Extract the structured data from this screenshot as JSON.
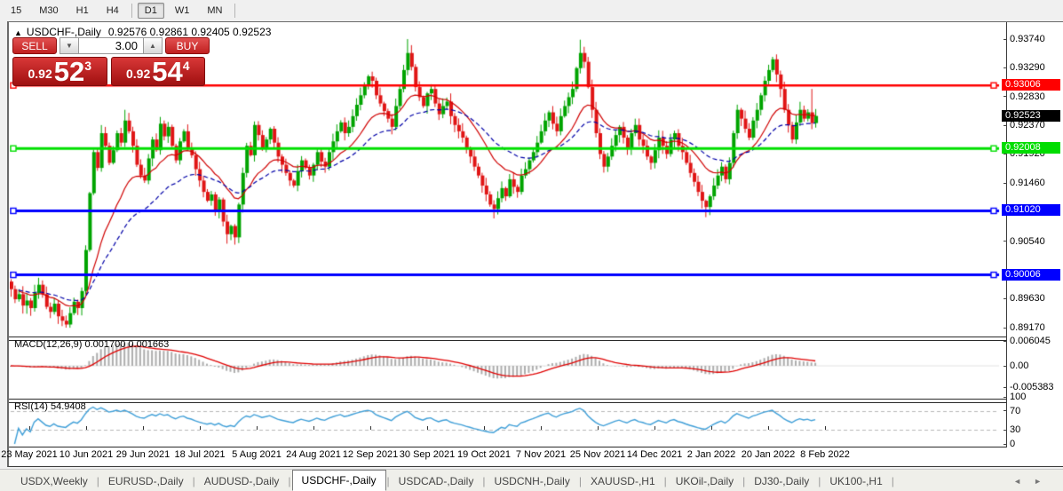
{
  "toolbar": {
    "timeframes": [
      "15",
      "M30",
      "H1",
      "H4",
      "D1",
      "W1",
      "MN"
    ],
    "active": "D1",
    "separators_after": [
      "H4",
      "MN"
    ]
  },
  "chart": {
    "expand_arrow": "▲",
    "symbol_label": "USDCHF-,Daily",
    "ohlc_text": "0.92576 0.92861 0.92405 0.92523",
    "open": "0.92576",
    "high": "0.92861",
    "low": "0.92405",
    "close": "0.92523"
  },
  "trade_panel": {
    "sell_label": "SELL",
    "buy_label": "BUY",
    "volume": "3.00",
    "sell_price": {
      "prefix": "0.92",
      "big": "52",
      "sup": "3"
    },
    "buy_price": {
      "prefix": "0.92",
      "big": "54",
      "sup": "4"
    }
  },
  "icons": {
    "spinner_down": "▼",
    "spinner_up": "▲",
    "tab_scroll_left": "◄",
    "tab_scroll_right": "►"
  },
  "price_axis": {
    "ticks": [
      "0.93740",
      "0.93290",
      "0.92830",
      "0.92370",
      "0.91920",
      "0.91460",
      "0.90540",
      "0.89630",
      "0.89170"
    ],
    "badges": [
      {
        "value": "0.93006",
        "bg": "#ff0000",
        "fg": "#ffffff"
      },
      {
        "value": "0.92523",
        "bg": "#000000",
        "fg": "#ffffff"
      },
      {
        "value": "0.92008",
        "bg": "#00dd00",
        "fg": "#ffffff"
      },
      {
        "value": "0.91020",
        "bg": "#0000ff",
        "fg": "#ffffff"
      },
      {
        "value": "0.90006",
        "bg": "#0000ff",
        "fg": "#ffffff"
      }
    ]
  },
  "levels": [
    {
      "price": 0.93006,
      "color": "#ff0000",
      "width": 2.5
    },
    {
      "price": 0.92008,
      "color": "#00e000",
      "width": 3
    },
    {
      "price": 0.9102,
      "color": "#0000ff",
      "width": 3
    },
    {
      "price": 0.90006,
      "color": "#0000ff",
      "width": 3
    }
  ],
  "date_axis": [
    "23 May 2021",
    "10 Jun 2021",
    "29 Jun 2021",
    "18 Jul 2021",
    "5 Aug 2021",
    "24 Aug 2021",
    "12 Sep 2021",
    "30 Sep 2021",
    "19 Oct 2021",
    "7 Nov 2021",
    "25 Nov 2021",
    "14 Dec 2021",
    "2 Jan 2022",
    "20 Jan 2022",
    "8 Feb 2022"
  ],
  "indicators": {
    "macd": {
      "label": "MACD(12,26,9) 0.001700 0.001663",
      "axis": [
        "0.006045",
        "0.00",
        "-0.005383"
      ],
      "params": [
        12,
        26,
        9
      ]
    },
    "rsi": {
      "label": "RSI(14) 54.9408",
      "axis": [
        "100",
        "70",
        "30",
        "0"
      ],
      "levels": [
        70,
        30
      ],
      "period": 14
    }
  },
  "tabs": {
    "items": [
      "USDX,Weekly",
      "EURUSD-,Daily",
      "AUDUSD-,Daily",
      "USDCHF-,Daily",
      "USDCAD-,Daily",
      "USDCNH-,Daily",
      "XAUUSD-,H1",
      "UKOil-,Daily",
      "DJ30-,Daily",
      "UK100-,H1"
    ],
    "active": "USDCHF-,Daily"
  },
  "chart_data": {
    "type": "candlestick",
    "symbol": "USDCHF",
    "timeframe": "Daily",
    "bull_color": "#00a400",
    "bear_color": "#e01515",
    "ma_fast_color": "#d00000",
    "ma_slow_color": "#0000a8",
    "rsi_color": "#3f9fd8",
    "macd_bar_color": "#adadad",
    "macd_signal_color": "#e00000",
    "closes": [
      0.8978,
      0.8962,
      0.897,
      0.8952,
      0.896,
      0.8948,
      0.8972,
      0.8985,
      0.897,
      0.895,
      0.8942,
      0.8955,
      0.8935,
      0.8928,
      0.8922,
      0.894,
      0.8958,
      0.8948,
      0.8975,
      0.904,
      0.913,
      0.9195,
      0.917,
      0.9225,
      0.9205,
      0.9178,
      0.9198,
      0.9225,
      0.921,
      0.9245,
      0.9228,
      0.9205,
      0.9175,
      0.9158,
      0.915,
      0.9185,
      0.9215,
      0.9198,
      0.924,
      0.922,
      0.9235,
      0.9205,
      0.9182,
      0.9212,
      0.9228,
      0.9202,
      0.919,
      0.9168,
      0.915,
      0.9132,
      0.9118,
      0.9128,
      0.9102,
      0.912,
      0.9085,
      0.9065,
      0.9078,
      0.906,
      0.9112,
      0.9162,
      0.9205,
      0.919,
      0.9238,
      0.9222,
      0.92,
      0.9215,
      0.9232,
      0.921,
      0.9188,
      0.9175,
      0.9162,
      0.915,
      0.9142,
      0.9165,
      0.9182,
      0.917,
      0.9158,
      0.9175,
      0.9195,
      0.918,
      0.9172,
      0.9195,
      0.9212,
      0.9228,
      0.9242,
      0.9225,
      0.9235,
      0.9252,
      0.927,
      0.9285,
      0.9302,
      0.9315,
      0.9308,
      0.9285,
      0.9272,
      0.926,
      0.9248,
      0.9235,
      0.9268,
      0.9295,
      0.9325,
      0.9352,
      0.933,
      0.9298,
      0.9282,
      0.9268,
      0.9288,
      0.9295,
      0.9272,
      0.9255,
      0.9268,
      0.9275,
      0.9252,
      0.9238,
      0.9228,
      0.9218,
      0.9202,
      0.9188,
      0.9172,
      0.9158,
      0.9142,
      0.9128,
      0.9112,
      0.9105,
      0.9122,
      0.9138,
      0.9125,
      0.9152,
      0.914,
      0.9132,
      0.9158,
      0.9168,
      0.9182,
      0.9195,
      0.921,
      0.9228,
      0.9245,
      0.9258,
      0.924,
      0.9228,
      0.9252,
      0.9268,
      0.9282,
      0.9295,
      0.9328,
      0.9352,
      0.9338,
      0.9298,
      0.9262,
      0.9225,
      0.9192,
      0.9172,
      0.9188,
      0.9205,
      0.9222,
      0.9235,
      0.9218,
      0.9202,
      0.9225,
      0.9238,
      0.9215,
      0.9205,
      0.9188,
      0.9178,
      0.9198,
      0.9218,
      0.9205,
      0.9192,
      0.9215,
      0.9225,
      0.9205,
      0.9195,
      0.9178,
      0.9162,
      0.9148,
      0.9132,
      0.9118,
      0.9108,
      0.9125,
      0.9142,
      0.9158,
      0.9172,
      0.9152,
      0.9178,
      0.9225,
      0.9262,
      0.9248,
      0.9232,
      0.9218,
      0.9245,
      0.9262,
      0.9285,
      0.9308,
      0.9325,
      0.9342,
      0.9318,
      0.9295,
      0.9262,
      0.9238,
      0.9215,
      0.9242,
      0.9262,
      0.9248,
      0.9258,
      0.9241,
      0.92523
    ],
    "extremes": {
      "14": {
        "l": 0.8917
      },
      "29": {
        "h": 0.9262
      },
      "55": {
        "l": 0.905
      },
      "101": {
        "h": 0.9374
      },
      "123": {
        "l": 0.909
      },
      "145": {
        "h": 0.9373
      },
      "177": {
        "l": 0.9092
      },
      "204": {
        "h": 0.9295
      }
    },
    "ma_fast_period": 16,
    "ma_slow_period": 32
  }
}
